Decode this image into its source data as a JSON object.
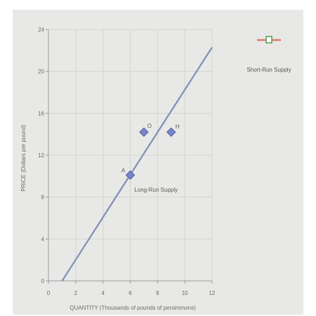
{
  "chart_data": {
    "type": "scatter",
    "xlabel": "QUANTITY (Thousands of pounds of persimmons)",
    "ylabel": "PRICE (Dollars per pound)",
    "xlim": [
      0,
      12
    ],
    "ylim": [
      0,
      24
    ],
    "x_ticks": [
      "0",
      "2",
      "4",
      "6",
      "8",
      "10",
      "12"
    ],
    "y_ticks": [
      "0",
      "4",
      "8",
      "12",
      "16",
      "20",
      "24"
    ],
    "grid": true,
    "legend_position": "right",
    "legend": [
      {
        "label": "Short-Run Supply",
        "color": "#e0796a",
        "marker_color": "#5a9e5a"
      }
    ],
    "line": {
      "label": "Long-Run Supply",
      "color": "#7f8fb5",
      "points": [
        [
          1,
          0
        ],
        [
          12,
          22.3
        ]
      ]
    },
    "points": [
      {
        "label": "A",
        "x": 6,
        "y": 10.1
      },
      {
        "label": "O",
        "x": 7,
        "y": 14.2
      },
      {
        "label": "H",
        "x": 9,
        "y": 14.2
      }
    ],
    "point_color": "#7b86c9"
  }
}
